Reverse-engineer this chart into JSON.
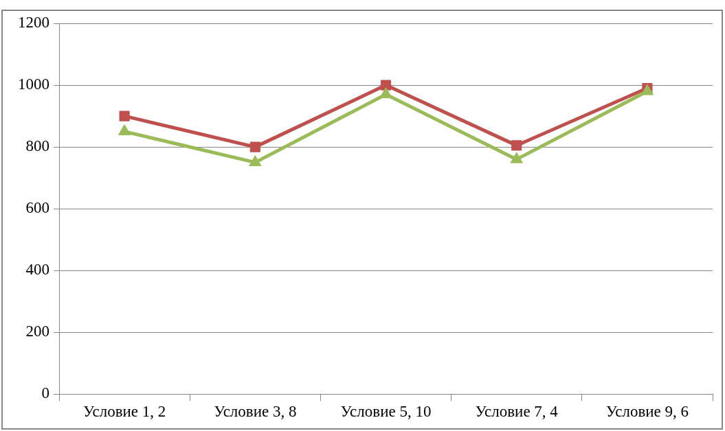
{
  "chart_data": {
    "type": "line",
    "categories": [
      "Условие 1, 2",
      "Условие 3, 8",
      "Условие 5, 10",
      "Условие 7, 4",
      "Условие 9, 6"
    ],
    "series": [
      {
        "color": "#c0504d",
        "marker": "square",
        "values": [
          900,
          800,
          1000,
          805,
          990
        ]
      },
      {
        "color": "#9bbb59",
        "marker": "triangle",
        "values": [
          850,
          750,
          970,
          760,
          980
        ]
      }
    ],
    "ylim": [
      0,
      1200
    ],
    "yticks": [
      0,
      200,
      400,
      600,
      800,
      1000,
      1200
    ],
    "grid": "y",
    "legend": false,
    "line_style": "solid"
  }
}
